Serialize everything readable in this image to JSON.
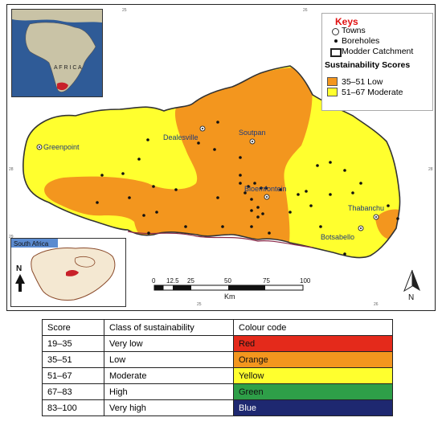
{
  "legend": {
    "keys_title": "Keys",
    "towns": "Towns",
    "boreholes": "Boreholes",
    "catchment": "Modder Catchment",
    "scores_title": "Sustainability Scores",
    "classes": [
      {
        "label": "35–51 Low",
        "color": "#F3961E"
      },
      {
        "label": "51–67 Moderate",
        "color": "#FFFF2E"
      }
    ]
  },
  "towns": [
    "Greenpoint",
    "Dealesville",
    "Soutpan",
    "Bloemfontein",
    "Thabanchu",
    "Botsabello"
  ],
  "inset_africa_label": "A F R I C A",
  "inset_sa_label": "South Africa",
  "north_label": "N",
  "scalebar": {
    "ticks": [
      "0",
      "12.5",
      "25",
      "50",
      "75",
      "100"
    ],
    "unit": "Km"
  },
  "graticule": {
    "top": [
      "25",
      "26"
    ],
    "left": [
      "28",
      "29"
    ],
    "bottom": [
      "25",
      "26"
    ],
    "right": [
      "28",
      "29"
    ]
  },
  "table": {
    "headers": [
      "Score",
      "Class of sustainability",
      "Colour code"
    ],
    "rows": [
      {
        "score": "19–35",
        "class": "Very low",
        "code": "Red",
        "bg": "#E42A1B",
        "fg": "#111111"
      },
      {
        "score": "35–51",
        "class": "Low",
        "code": "Orange",
        "bg": "#F3961E",
        "fg": "#111111"
      },
      {
        "score": "51–67",
        "class": "Moderate",
        "code": "Yellow",
        "bg": "#FFFF2E",
        "fg": "#111111"
      },
      {
        "score": "67–83",
        "class": "High",
        "code": "Green",
        "bg": "#2E9F48",
        "fg": "#111111"
      },
      {
        "score": "83–100",
        "class": "Very high",
        "code": "Blue",
        "bg": "#1E2870",
        "fg": "#ffffff"
      }
    ]
  }
}
